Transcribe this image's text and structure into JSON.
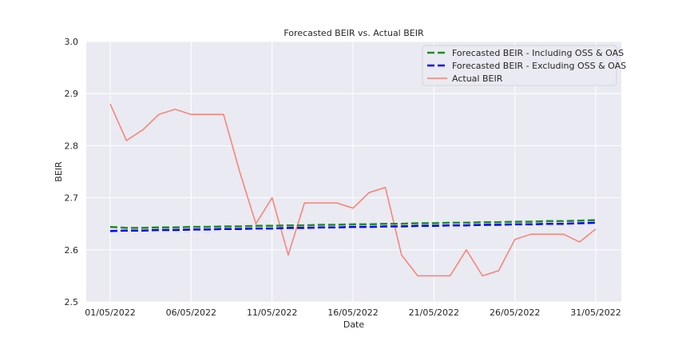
{
  "chart_data": {
    "type": "line",
    "title": "Forecasted BEIR vs. Actual BEIR",
    "xlabel": "Date",
    "ylabel": "BEIR",
    "ylim": [
      2.5,
      3.0
    ],
    "yticks": [
      2.5,
      2.6,
      2.7,
      2.8,
      2.9,
      3.0
    ],
    "ytick_labels": [
      "2.5",
      "2.6",
      "2.7",
      "2.8",
      "2.9",
      "3.0"
    ],
    "x": [
      "01/05/2022",
      "02/05/2022",
      "03/05/2022",
      "04/05/2022",
      "05/05/2022",
      "06/05/2022",
      "07/05/2022",
      "08/05/2022",
      "09/05/2022",
      "10/05/2022",
      "11/05/2022",
      "12/05/2022",
      "13/05/2022",
      "14/05/2022",
      "15/05/2022",
      "16/05/2022",
      "17/05/2022",
      "18/05/2022",
      "19/05/2022",
      "20/05/2022",
      "21/05/2022",
      "22/05/2022",
      "23/05/2022",
      "24/05/2022",
      "25/05/2022",
      "26/05/2022",
      "27/05/2022",
      "28/05/2022",
      "29/05/2022",
      "30/05/2022",
      "31/05/2022"
    ],
    "xticks": [
      "01/05/2022",
      "06/05/2022",
      "11/05/2022",
      "16/05/2022",
      "21/05/2022",
      "26/05/2022",
      "31/05/2022"
    ],
    "grid": true,
    "legend_position": "top-right",
    "series": [
      {
        "name": "Forecasted BEIR - Including OSS & OAS",
        "color": "#228B22",
        "style": "dashed",
        "values": [
          2.644,
          2.642,
          2.642,
          2.643,
          2.643,
          2.644,
          2.644,
          2.645,
          2.645,
          2.646,
          2.646,
          2.647,
          2.647,
          2.648,
          2.648,
          2.649,
          2.649,
          2.65,
          2.65,
          2.651,
          2.651,
          2.652,
          2.652,
          2.653,
          2.653,
          2.654,
          2.654,
          2.655,
          2.655,
          2.656,
          2.657
        ]
      },
      {
        "name": "Forecasted BEIR - Excluding OSS & OAS",
        "color": "#0000FF",
        "style": "dashed",
        "values": [
          2.636,
          2.637,
          2.637,
          2.638,
          2.638,
          2.639,
          2.639,
          2.64,
          2.64,
          2.641,
          2.641,
          2.642,
          2.642,
          2.643,
          2.643,
          2.644,
          2.644,
          2.645,
          2.645,
          2.646,
          2.646,
          2.647,
          2.647,
          2.648,
          2.648,
          2.649,
          2.649,
          2.65,
          2.65,
          2.651,
          2.652
        ]
      },
      {
        "name": "Actual BEIR",
        "color": "#FA8072",
        "style": "solid",
        "values": [
          2.88,
          2.81,
          2.83,
          2.86,
          2.87,
          2.86,
          2.86,
          2.86,
          2.75,
          2.65,
          2.7,
          2.59,
          2.69,
          2.69,
          2.69,
          2.68,
          2.71,
          2.72,
          2.59,
          2.55,
          2.55,
          2.55,
          2.6,
          2.55,
          2.56,
          2.62,
          2.63,
          2.63,
          2.63,
          2.615,
          2.64
        ]
      }
    ]
  }
}
